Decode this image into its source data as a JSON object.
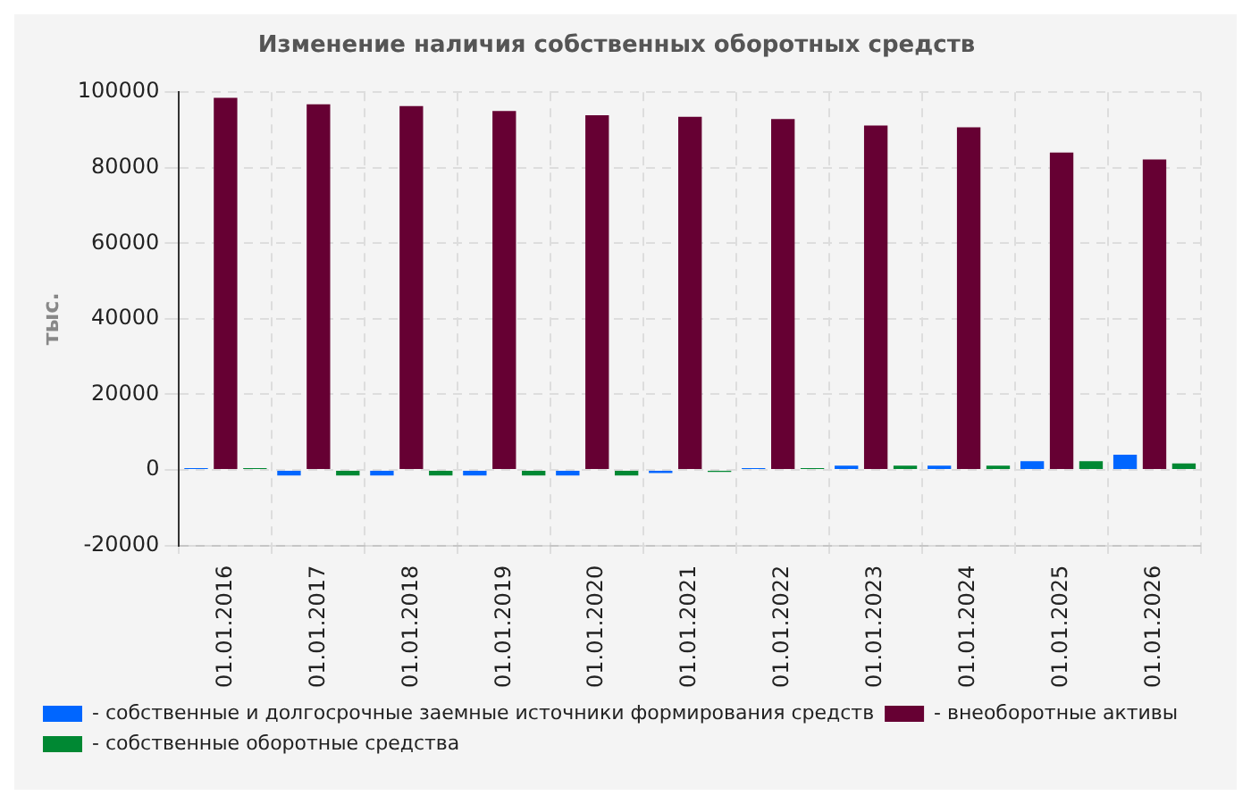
{
  "chart_data": {
    "type": "bar",
    "title": "Изменение наличия собственных оборотных средств",
    "ylabel": "тыс.",
    "categories": [
      "01.01.2016",
      "01.01.2017",
      "01.01.2018",
      "01.01.2019",
      "01.01.2020",
      "01.01.2021",
      "01.01.2022",
      "01.01.2023",
      "01.01.2024",
      "01.01.2025",
      "01.01.2026"
    ],
    "series": [
      {
        "name": "- собственные и долгосрочные заемные источники формирования средств",
        "color": "#0066ff",
        "values": [
          500,
          -1500,
          -1500,
          -1500,
          -1500,
          -800,
          500,
          1100,
          1100,
          2300,
          4000
        ]
      },
      {
        "name": "- внеоборотные активы",
        "color": "#660033",
        "values": [
          98500,
          96800,
          96300,
          95000,
          93900,
          93500,
          92900,
          91200,
          90700,
          84000,
          82200
        ]
      },
      {
        "name": "- собственные оборотные средства",
        "color": "#008833",
        "values": [
          500,
          -1500,
          -1500,
          -1500,
          -1500,
          -500,
          500,
          1100,
          1100,
          2300,
          1700
        ]
      }
    ],
    "ylim": [
      -20000,
      100000
    ],
    "yticks": [
      -20000,
      0,
      20000,
      40000,
      60000,
      80000,
      100000
    ],
    "grid": true,
    "legend": "bottom"
  }
}
